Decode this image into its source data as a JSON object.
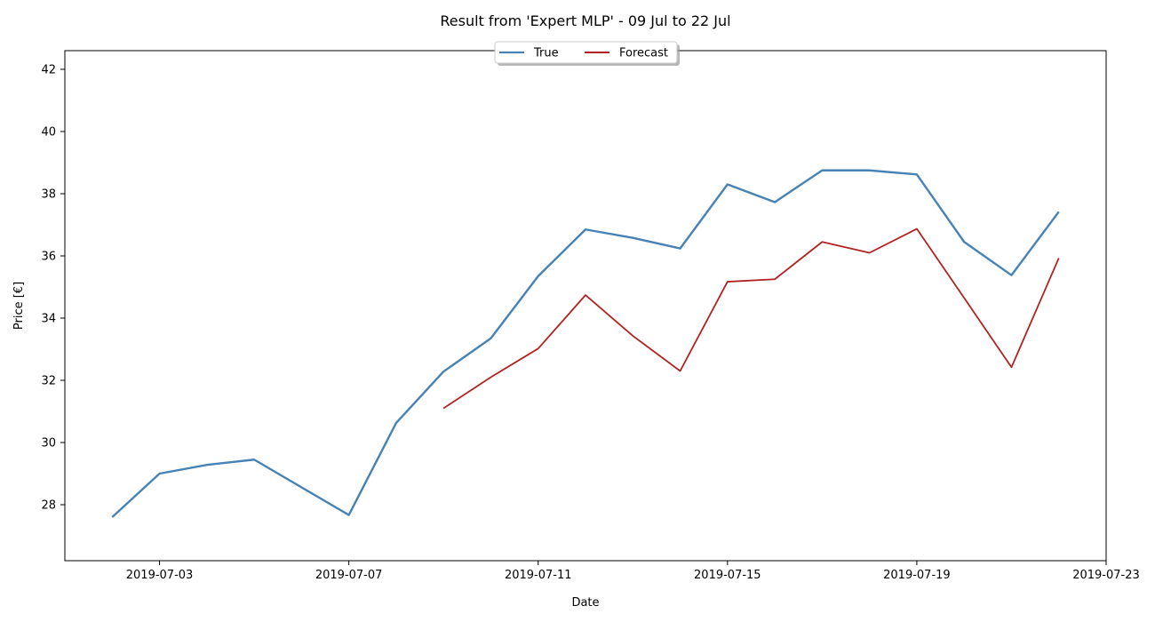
{
  "chart_data": {
    "type": "line",
    "title": "Result from 'Expert MLP' - 09 Jul to 22 Jul",
    "xlabel": "Date",
    "ylabel": "Price [€]",
    "xlim": [
      "2019-07-01",
      "2019-07-23"
    ],
    "ylim": [
      26.2,
      42.6
    ],
    "x_ticks": [
      "2019-07-03",
      "2019-07-07",
      "2019-07-11",
      "2019-07-15",
      "2019-07-19",
      "2019-07-23"
    ],
    "y_ticks": [
      28,
      30,
      32,
      34,
      36,
      38,
      40,
      42
    ],
    "grid": false,
    "legend": {
      "placement": "top-center",
      "entries": [
        "True",
        "Forecast"
      ]
    },
    "series": [
      {
        "name": "True",
        "color": "#4682b4",
        "points": [
          [
            "2019-07-02",
            27.6
          ],
          [
            "2019-07-03",
            29.0
          ],
          [
            "2019-07-04",
            29.28
          ],
          [
            "2019-07-05",
            29.45
          ],
          [
            "2019-07-07",
            27.67
          ],
          [
            "2019-07-08",
            30.63
          ],
          [
            "2019-07-09",
            32.28
          ],
          [
            "2019-07-10",
            33.35
          ],
          [
            "2019-07-11",
            35.35
          ],
          [
            "2019-07-12",
            36.85
          ],
          [
            "2019-07-13",
            36.58
          ],
          [
            "2019-07-14",
            36.24
          ],
          [
            "2019-07-15",
            38.3
          ],
          [
            "2019-07-16",
            37.73
          ],
          [
            "2019-07-17",
            38.75
          ],
          [
            "2019-07-18",
            38.75
          ],
          [
            "2019-07-19",
            38.62
          ],
          [
            "2019-07-20",
            36.45
          ],
          [
            "2019-07-21",
            35.38
          ],
          [
            "2019-07-22",
            37.42
          ]
        ]
      },
      {
        "name": "Forecast",
        "color": "#b22222",
        "points": [
          [
            "2019-07-09",
            31.1
          ],
          [
            "2019-07-10",
            32.1
          ],
          [
            "2019-07-11",
            33.02
          ],
          [
            "2019-07-12",
            34.74
          ],
          [
            "2019-07-13",
            33.43
          ],
          [
            "2019-07-14",
            32.3
          ],
          [
            "2019-07-15",
            35.17
          ],
          [
            "2019-07-16",
            35.25
          ],
          [
            "2019-07-17",
            36.45
          ],
          [
            "2019-07-18",
            36.1
          ],
          [
            "2019-07-19",
            36.87
          ],
          [
            "2019-07-20",
            34.65
          ],
          [
            "2019-07-21",
            32.42
          ],
          [
            "2019-07-22",
            35.93
          ]
        ]
      }
    ]
  }
}
